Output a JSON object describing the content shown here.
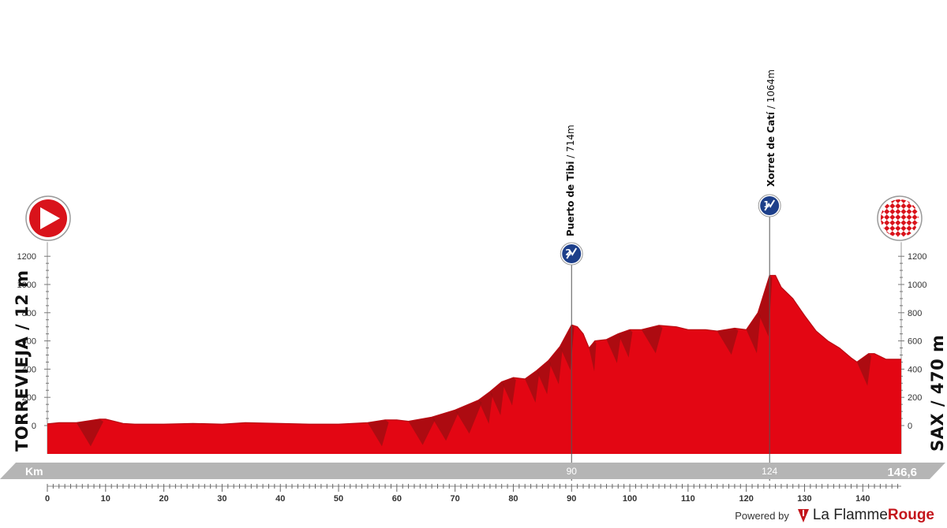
{
  "chart_data": {
    "type": "area",
    "title": "",
    "xlabel": "Km",
    "ylabel": "",
    "xlim": [
      0,
      146.6
    ],
    "ylim": [
      -200,
      1300
    ],
    "x_ticks": [
      0,
      10,
      20,
      30,
      40,
      50,
      60,
      70,
      80,
      90,
      100,
      110,
      120,
      130,
      140
    ],
    "y_ticks": [
      0,
      200,
      400,
      600,
      800,
      1000,
      1200
    ],
    "highlight_km": [
      "90",
      "124"
    ],
    "total_distance_label": "146,6",
    "fill_color": "#e30613",
    "shadow_color": "#9b0d12",
    "series": [
      {
        "x": [
          0,
          2,
          5,
          9,
          10,
          13,
          15,
          20,
          25,
          30,
          34,
          40,
          45,
          50,
          55,
          58,
          60,
          62,
          66,
          70,
          74,
          76,
          78,
          80,
          82,
          84,
          86,
          88,
          90,
          91,
          92,
          93,
          94,
          96,
          98,
          100,
          102,
          105,
          108,
          110,
          113,
          115,
          118,
          120,
          122,
          124,
          125,
          126,
          128,
          130,
          132,
          134,
          136,
          138,
          139,
          141,
          142,
          144,
          146.6
        ],
        "values": [
          12,
          20,
          20,
          45,
          45,
          15,
          10,
          10,
          15,
          10,
          20,
          15,
          10,
          10,
          20,
          40,
          40,
          30,
          60,
          110,
          180,
          240,
          310,
          340,
          330,
          390,
          460,
          560,
          714,
          700,
          650,
          550,
          600,
          610,
          650,
          680,
          680,
          710,
          700,
          680,
          680,
          670,
          690,
          680,
          800,
          1064,
          1064,
          980,
          900,
          780,
          670,
          600,
          550,
          480,
          450,
          510,
          510,
          470,
          470
        ]
      }
    ],
    "start": {
      "name": "TORREVIEJA / 12 m",
      "km": 0
    },
    "finish": {
      "name": "SAX / 470 m",
      "km": 146.6
    },
    "climbs": [
      {
        "name": "Puerto de Tibi",
        "altitude": " / 714m",
        "km": 90,
        "category": "2",
        "top_altitude_m": 714
      },
      {
        "name": "Xorret de Catí",
        "altitude": " / 1064m",
        "km": 124,
        "category": "1",
        "top_altitude_m": 1064
      }
    ]
  },
  "footer": {
    "powered_by": "Powered by",
    "brand_prefix": "La Flamme",
    "brand_suffix": "Rouge"
  }
}
